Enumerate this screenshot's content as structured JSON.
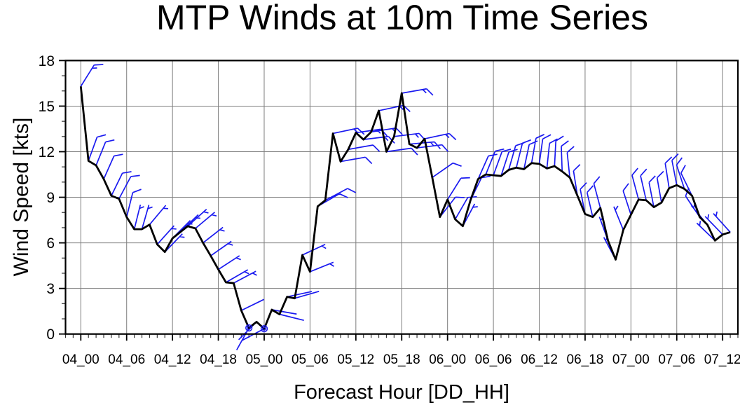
{
  "title": "MTP Winds at 10m Time Series",
  "x_axis": {
    "label": "Forecast Hour [DD_HH]",
    "tick_labels": [
      "04_00",
      "04_06",
      "04_12",
      "04_18",
      "05_00",
      "05_06",
      "05_12",
      "05_18",
      "06_00",
      "06_06",
      "06_12",
      "06_18",
      "07_00",
      "07_06",
      "07_12"
    ],
    "hours_between_ticks": 6,
    "minor_tick_every_hours": 1,
    "range_hours": [
      -2,
      86
    ]
  },
  "y_axis": {
    "label": "Wind Speed [kts]",
    "tick_labels": [
      "0",
      "3",
      "6",
      "9",
      "12",
      "15",
      "18"
    ],
    "range": [
      0,
      18
    ],
    "minor_tick_every_kts": 1
  },
  "colors": {
    "speed_line": "#000000",
    "wind_barbs": "#1a1af0",
    "grid": "#7d7d7d",
    "axis": "#000000",
    "minor_tick": "#333333",
    "text": "#000000",
    "background": "#ffffff"
  },
  "chart_data": {
    "type": "line",
    "series_name": "MTP wind speed at 10m",
    "units": "kts",
    "x_label_format": "DD_HH",
    "grid": "on",
    "forecast_hours": [
      0,
      1,
      2,
      3,
      4,
      5,
      6,
      7,
      8,
      9,
      10,
      11,
      12,
      13,
      14,
      15,
      16,
      17,
      18,
      19,
      20,
      21,
      22,
      23,
      24,
      25,
      26,
      27,
      28,
      29,
      30,
      31,
      32,
      33,
      34,
      35,
      36,
      37,
      38,
      39,
      40,
      41,
      42,
      43,
      44,
      45,
      46,
      47,
      48,
      49,
      50,
      51,
      52,
      53,
      54,
      55,
      56,
      57,
      58,
      59,
      60,
      61,
      62,
      63,
      64,
      65,
      66,
      67,
      68,
      69,
      70,
      71,
      72,
      73,
      74,
      75,
      76,
      77,
      78,
      79,
      80,
      81,
      82,
      83,
      84,
      85
    ],
    "wind_speed_kts": [
      16.3,
      11.4,
      11.1,
      10.2,
      9.1,
      8.9,
      7.7,
      6.9,
      6.9,
      7.2,
      5.9,
      5.4,
      6.3,
      6.7,
      7.1,
      6.95,
      6.0,
      5.15,
      4.25,
      3.4,
      3.35,
      1.55,
      0.4,
      0.8,
      0.35,
      1.6,
      1.3,
      2.45,
      2.35,
      5.2,
      4.1,
      8.4,
      8.8,
      13.2,
      11.35,
      12.15,
      13.25,
      12.8,
      13.3,
      14.7,
      12.0,
      13.0,
      15.85,
      12.5,
      12.25,
      12.85,
      10.3,
      7.7,
      8.85,
      7.55,
      7.1,
      8.8,
      10.2,
      10.5,
      10.45,
      10.4,
      10.8,
      10.95,
      10.85,
      11.25,
      11.2,
      10.9,
      11.05,
      10.7,
      10.3,
      9.1,
      7.9,
      7.7,
      8.3,
      6.15,
      4.9,
      6.85,
      7.85,
      8.85,
      8.8,
      8.35,
      8.65,
      9.6,
      9.8,
      9.55,
      9.1,
      7.7,
      7.2,
      6.15,
      6.55,
      6.7
    ],
    "barb_shaft_angle_deg": [
      58,
      70,
      68,
      66,
      64,
      62,
      76,
      76,
      74,
      50,
      48,
      46,
      45,
      44,
      42,
      40,
      38,
      35,
      33,
      30,
      28,
      26,
      241,
      225,
      208,
      -10,
      -14,
      12,
      16,
      25,
      22,
      30,
      28,
      12,
      10,
      10,
      8,
      7,
      9,
      12,
      8,
      7,
      10,
      5,
      7,
      12,
      35,
      52,
      58,
      60,
      62,
      64,
      66,
      68,
      70,
      72,
      74,
      76,
      78,
      80,
      82,
      84,
      87,
      92,
      96,
      99,
      101,
      103,
      105,
      110,
      118,
      112,
      108,
      105,
      103,
      101,
      100,
      99,
      101,
      108,
      116,
      124,
      130,
      136,
      134,
      132
    ],
    "calm_circle_hours": [
      22,
      24
    ],
    "barb_convention": {
      "half_barb_kts": 5,
      "full_barb_kts": 10
    }
  }
}
